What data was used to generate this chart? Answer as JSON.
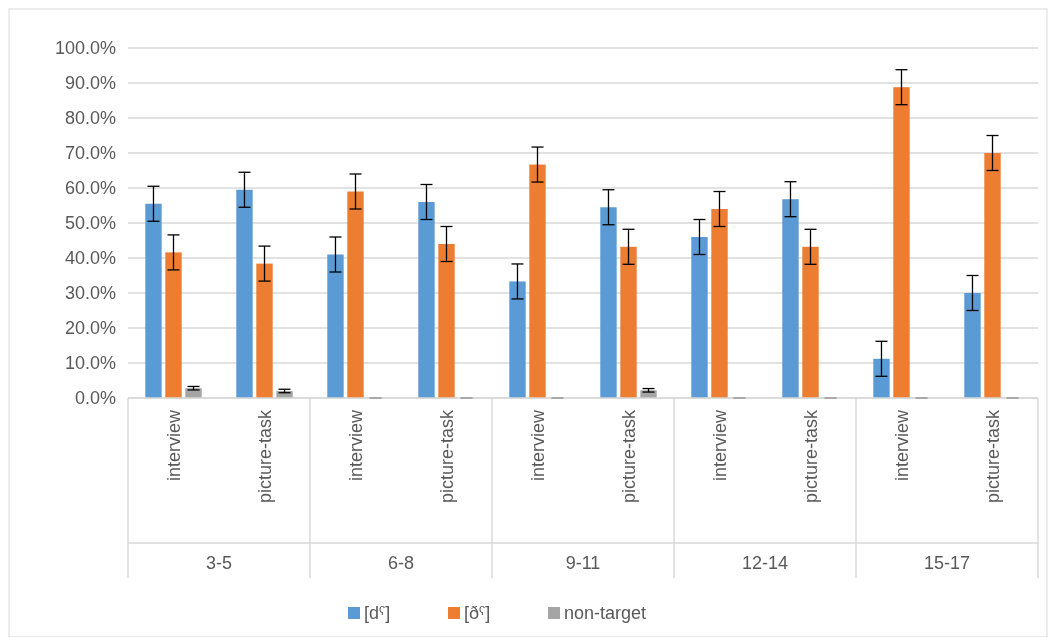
{
  "chart_data": {
    "type": "bar",
    "categories": [
      "interview",
      "picture-task",
      "interview",
      "picture-task",
      "interview",
      "picture-task",
      "interview",
      "picture-task",
      "interview",
      "picture-task"
    ],
    "annotations": [
      "3-5",
      "6-8",
      "9-11",
      "12-14",
      "15-17"
    ],
    "series": [
      {
        "name": "[dˤ]",
        "color": "#5b9bd5",
        "values": [
          55.5,
          59.5,
          41,
          56,
          33.3,
          54.5,
          46,
          56.8,
          11.2,
          30
        ],
        "errors": [
          5,
          5,
          5,
          5,
          5,
          5,
          5,
          5,
          5,
          5
        ]
      },
      {
        "name": "[ðˤ]",
        "color": "#ed7d31",
        "values": [
          41.6,
          38.4,
          59,
          44,
          66.7,
          43.2,
          54,
          43.2,
          88.8,
          70
        ],
        "errors": [
          5,
          5,
          5,
          5,
          5,
          5,
          5,
          5,
          5,
          5
        ]
      },
      {
        "name": "non-target",
        "color": "#a5a5a5",
        "values": [
          2.8,
          2,
          0,
          0,
          0,
          2.2,
          0,
          0,
          0,
          0
        ],
        "errors": [
          0.5,
          0.5,
          0,
          0,
          0,
          0.5,
          0,
          0,
          0,
          0
        ]
      }
    ],
    "ylim": [
      0,
      100
    ],
    "yticks": [
      {
        "value": 0,
        "label": "0.0%"
      },
      {
        "value": 10,
        "label": "10.0%"
      },
      {
        "value": 20,
        "label": "20.0%"
      },
      {
        "value": 30,
        "label": "30.0%"
      },
      {
        "value": 40,
        "label": "40.0%"
      },
      {
        "value": 50,
        "label": "50.0%"
      },
      {
        "value": 60,
        "label": "60.0%"
      },
      {
        "value": 70,
        "label": "70.0%"
      },
      {
        "value": 80,
        "label": "80.0%"
      },
      {
        "value": 90,
        "label": "90.0%"
      },
      {
        "value": 100,
        "label": "100.0%"
      }
    ],
    "grid": "y",
    "legend": "bottom"
  }
}
